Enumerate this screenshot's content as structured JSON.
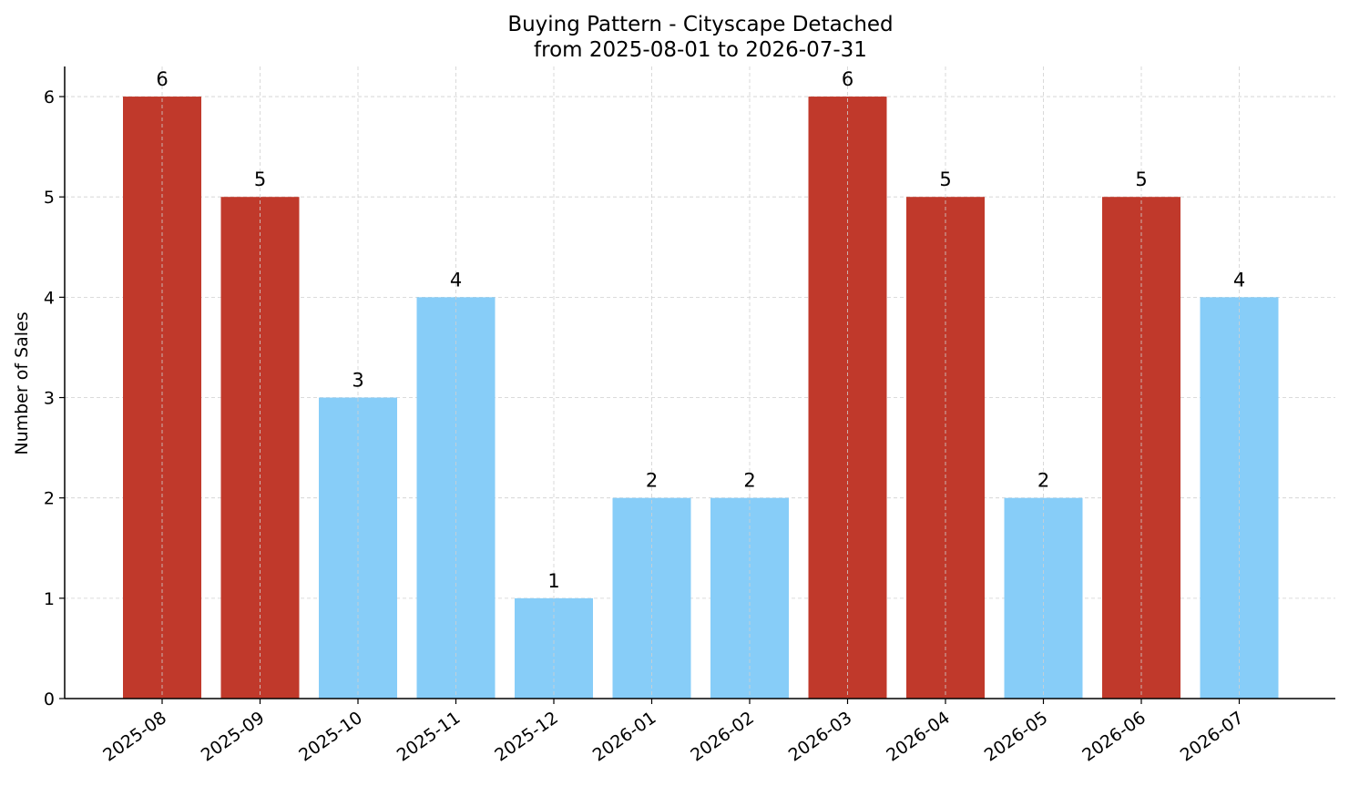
{
  "chart_data": {
    "type": "bar",
    "title": "Buying Pattern - Cityscape Detached",
    "subtitle": "from 2025-08-01 to 2026-07-31",
    "xlabel": "",
    "ylabel": "Number of Sales",
    "categories": [
      "2025-08",
      "2025-09",
      "2025-10",
      "2025-11",
      "2025-12",
      "2026-01",
      "2026-02",
      "2026-03",
      "2026-04",
      "2026-05",
      "2026-06",
      "2026-07"
    ],
    "values": [
      6,
      5,
      3,
      4,
      1,
      2,
      2,
      6,
      5,
      2,
      5,
      4
    ],
    "data_labels": [
      "6",
      "5",
      "3",
      "4",
      "1",
      "2",
      "2",
      "6",
      "5",
      "2",
      "5",
      "4"
    ],
    "ylim": [
      0,
      6.3
    ],
    "yticks": [
      0,
      1,
      2,
      3,
      4,
      5,
      6
    ],
    "grid": true,
    "highlight_threshold": 5,
    "colors": {
      "high": "#c0392b",
      "low": "#87cdf8",
      "grid": "#d0d0d0",
      "axis": "#000000"
    }
  }
}
